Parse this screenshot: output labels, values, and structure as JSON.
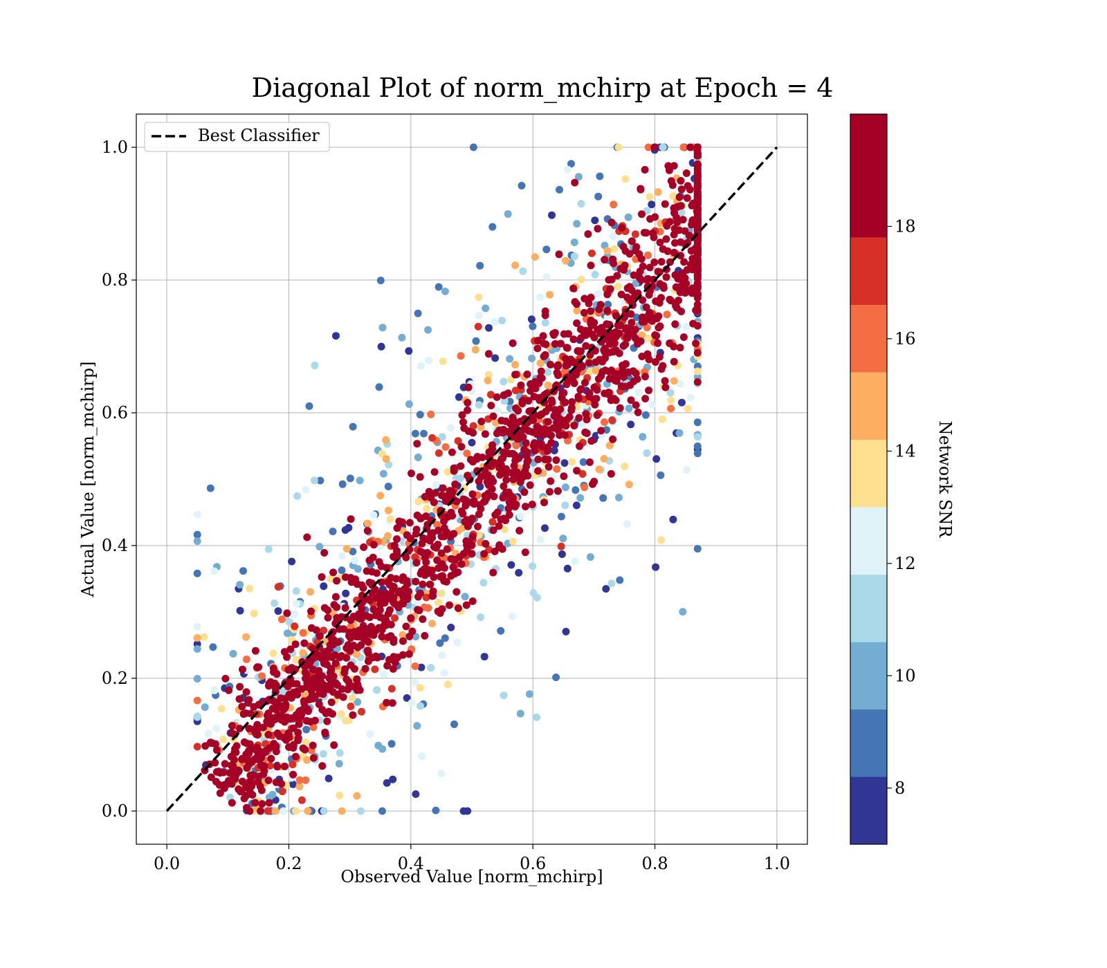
{
  "chart_data": {
    "type": "scatter",
    "title": "Diagonal Plot of norm_mchirp at Epoch = 4",
    "xlabel": "Observed Value [norm_mchirp]",
    "ylabel": "Actual Value [norm_mchirp]",
    "xlim": [
      -0.05,
      1.05
    ],
    "ylim": [
      -0.05,
      1.05
    ],
    "x_ticks": [
      "0.0",
      "0.2",
      "0.4",
      "0.6",
      "0.8",
      "1.0"
    ],
    "y_ticks": [
      "0.0",
      "0.2",
      "0.4",
      "0.6",
      "0.8",
      "1.0"
    ],
    "grid": true,
    "legend": {
      "placement": "top-left",
      "entries": [
        "Best Classifier"
      ]
    },
    "reference_line": {
      "name": "Best Classifier",
      "style": "dashed",
      "color": "#000000",
      "x": [
        0.0,
        1.0
      ],
      "y": [
        0.0,
        1.0
      ]
    },
    "colorbar": {
      "label": "Network SNR",
      "min": 7,
      "max": 20,
      "ticks": [
        "8",
        "10",
        "12",
        "14",
        "16",
        "18"
      ],
      "bands": [
        {
          "from": 7,
          "to": 8.2,
          "color": "#313695"
        },
        {
          "from": 8.2,
          "to": 9.4,
          "color": "#4575b4"
        },
        {
          "from": 9.4,
          "to": 10.6,
          "color": "#74add1"
        },
        {
          "from": 10.6,
          "to": 11.8,
          "color": "#abd9e9"
        },
        {
          "from": 11.8,
          "to": 13.0,
          "color": "#e0f3f8"
        },
        {
          "from": 13.0,
          "to": 14.2,
          "color": "#fee090"
        },
        {
          "from": 14.2,
          "to": 15.4,
          "color": "#fdae61"
        },
        {
          "from": 15.4,
          "to": 16.6,
          "color": "#f46d43"
        },
        {
          "from": 16.6,
          "to": 17.8,
          "color": "#d73027"
        },
        {
          "from": 17.8,
          "to": 20,
          "color": "#a50026"
        }
      ]
    },
    "point_cloud": {
      "description_of_shape": "dense band around the diagonal; low SNR spread wider",
      "n_points": 2600,
      "x_range": [
        0.05,
        0.87
      ],
      "y_range": [
        0.0,
        1.0
      ]
    }
  }
}
